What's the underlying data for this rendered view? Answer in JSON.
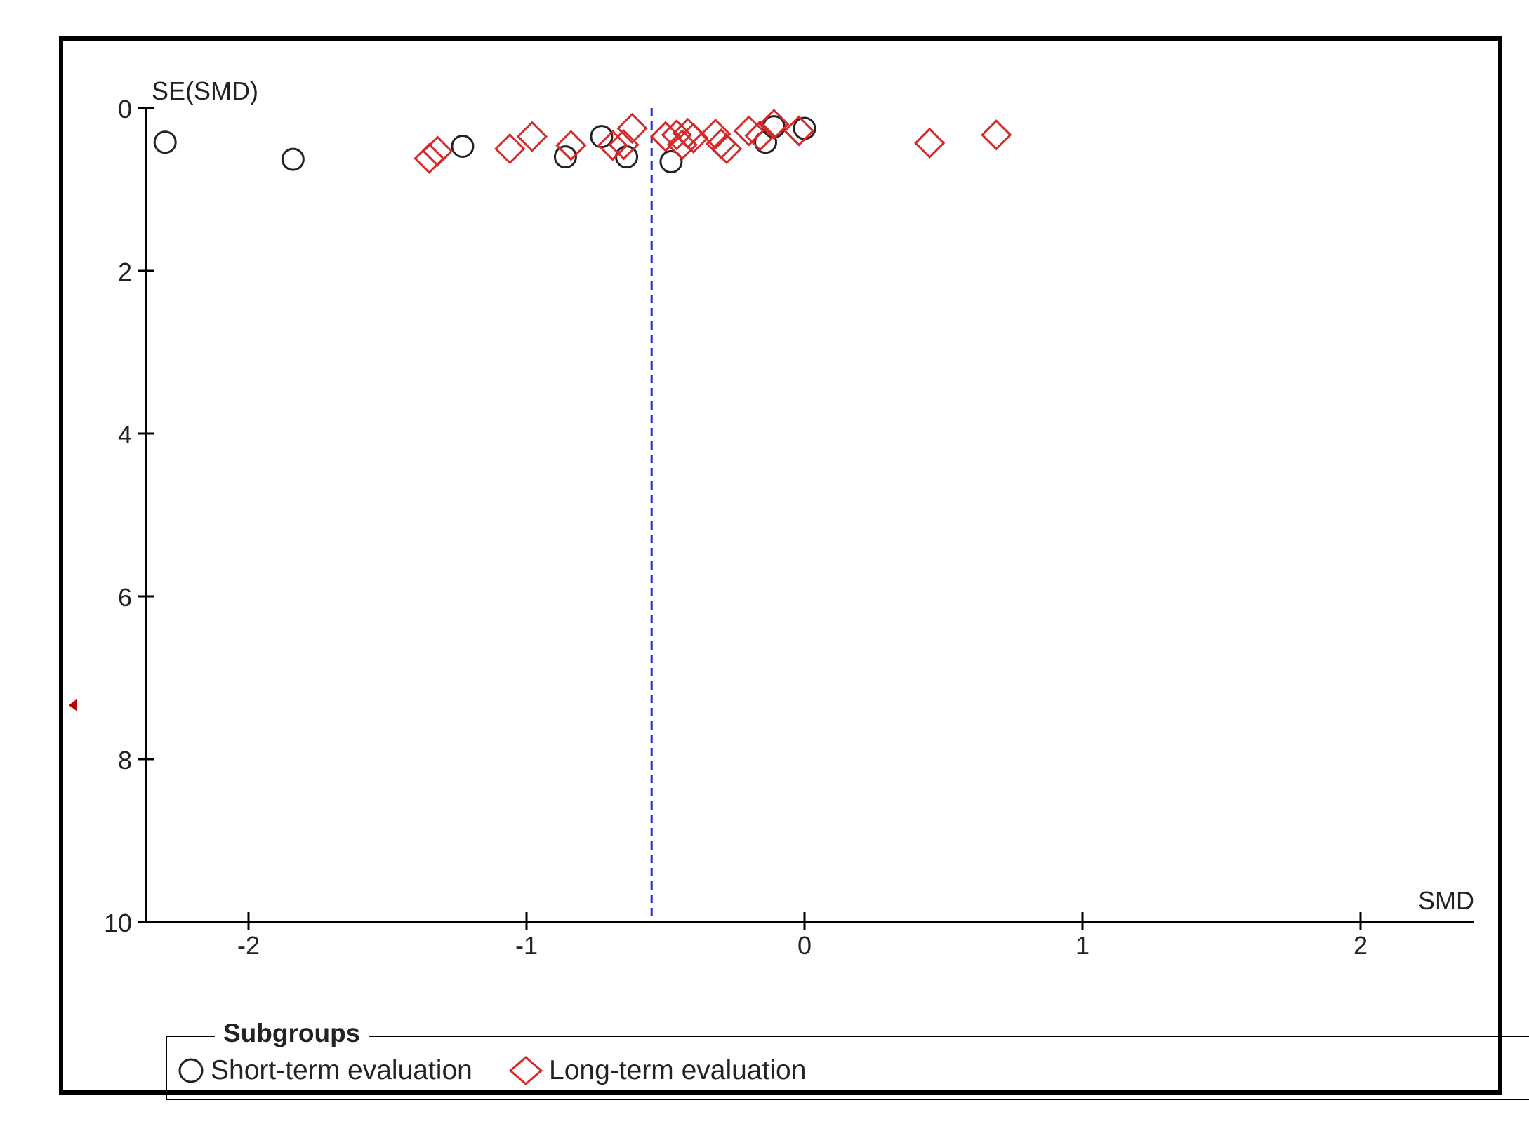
{
  "chart_data": {
    "type": "scatter",
    "title": "",
    "xlabel": "SMD",
    "ylabel": "SE(SMD)",
    "xlim": [
      -2.4,
      2.4
    ],
    "ylim": [
      0,
      10
    ],
    "y_inverted": true,
    "x_ticks": [
      "-2",
      "-1",
      "0",
      "1",
      "2"
    ],
    "x_tick_values": [
      -2,
      -1,
      0,
      1,
      2
    ],
    "y_ticks": [
      "0",
      "2",
      "4",
      "6",
      "8",
      "10"
    ],
    "y_tick_values": [
      0,
      2,
      4,
      6,
      8,
      10
    ],
    "reference_line": {
      "x": -0.55,
      "style": "dashed",
      "color": "#1f2fd6"
    },
    "legend_title": "Subgroups",
    "legend_position": "bottom",
    "series": [
      {
        "name": "Short-term evaluation",
        "marker": "circle",
        "color": "#222222",
        "points": [
          {
            "x": -2.3,
            "y": 0.42
          },
          {
            "x": -1.84,
            "y": 0.63
          },
          {
            "x": -1.23,
            "y": 0.47
          },
          {
            "x": -0.86,
            "y": 0.6
          },
          {
            "x": -0.73,
            "y": 0.35
          },
          {
            "x": -0.64,
            "y": 0.6
          },
          {
            "x": -0.48,
            "y": 0.66
          },
          {
            "x": -0.14,
            "y": 0.42
          },
          {
            "x": -0.11,
            "y": 0.23
          },
          {
            "x": 0.0,
            "y": 0.25
          }
        ]
      },
      {
        "name": "Long-term evaluation",
        "marker": "diamond",
        "color": "#d42a2a",
        "points": [
          {
            "x": -1.35,
            "y": 0.62
          },
          {
            "x": -1.32,
            "y": 0.53
          },
          {
            "x": -1.06,
            "y": 0.5
          },
          {
            "x": -0.98,
            "y": 0.35
          },
          {
            "x": -0.84,
            "y": 0.46
          },
          {
            "x": -0.69,
            "y": 0.46
          },
          {
            "x": -0.65,
            "y": 0.45
          },
          {
            "x": -0.62,
            "y": 0.25
          },
          {
            "x": -0.5,
            "y": 0.35
          },
          {
            "x": -0.46,
            "y": 0.33
          },
          {
            "x": -0.44,
            "y": 0.45
          },
          {
            "x": -0.42,
            "y": 0.31
          },
          {
            "x": -0.4,
            "y": 0.37
          },
          {
            "x": -0.32,
            "y": 0.32
          },
          {
            "x": -0.3,
            "y": 0.44
          },
          {
            "x": -0.28,
            "y": 0.5
          },
          {
            "x": -0.2,
            "y": 0.28
          },
          {
            "x": -0.16,
            "y": 0.34
          },
          {
            "x": -0.11,
            "y": 0.2
          },
          {
            "x": -0.02,
            "y": 0.28
          },
          {
            "x": 0.45,
            "y": 0.43
          },
          {
            "x": 0.69,
            "y": 0.33
          }
        ]
      }
    ]
  },
  "side_marker": {
    "color": "#c00000"
  }
}
